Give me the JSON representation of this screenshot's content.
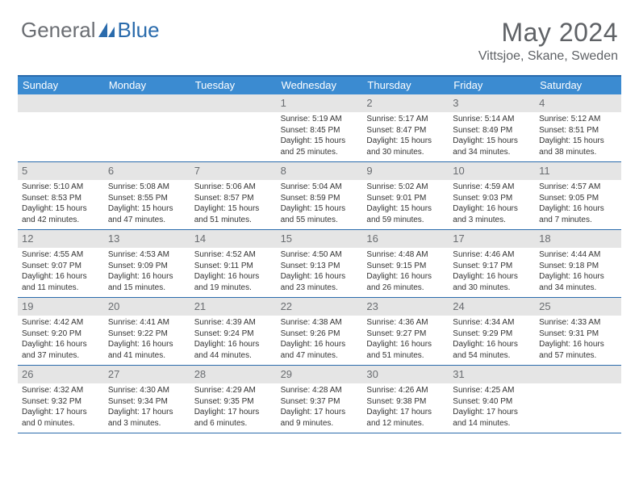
{
  "brand": {
    "part1": "General",
    "part2": "Blue"
  },
  "title": "May 2024",
  "location": "Vittsjoe, Skane, Sweden",
  "colors": {
    "header_bar": "#3b8bd1",
    "border": "#2a6bac",
    "daynum_bg": "#e5e5e5",
    "text": "#333333",
    "title_text": "#5f6266"
  },
  "day_names": [
    "Sunday",
    "Monday",
    "Tuesday",
    "Wednesday",
    "Thursday",
    "Friday",
    "Saturday"
  ],
  "weeks": [
    [
      {
        "n": "",
        "sr": "",
        "ss": "",
        "dl": ""
      },
      {
        "n": "",
        "sr": "",
        "ss": "",
        "dl": ""
      },
      {
        "n": "",
        "sr": "",
        "ss": "",
        "dl": ""
      },
      {
        "n": "1",
        "sr": "Sunrise: 5:19 AM",
        "ss": "Sunset: 8:45 PM",
        "dl": "Daylight: 15 hours and 25 minutes."
      },
      {
        "n": "2",
        "sr": "Sunrise: 5:17 AM",
        "ss": "Sunset: 8:47 PM",
        "dl": "Daylight: 15 hours and 30 minutes."
      },
      {
        "n": "3",
        "sr": "Sunrise: 5:14 AM",
        "ss": "Sunset: 8:49 PM",
        "dl": "Daylight: 15 hours and 34 minutes."
      },
      {
        "n": "4",
        "sr": "Sunrise: 5:12 AM",
        "ss": "Sunset: 8:51 PM",
        "dl": "Daylight: 15 hours and 38 minutes."
      }
    ],
    [
      {
        "n": "5",
        "sr": "Sunrise: 5:10 AM",
        "ss": "Sunset: 8:53 PM",
        "dl": "Daylight: 15 hours and 42 minutes."
      },
      {
        "n": "6",
        "sr": "Sunrise: 5:08 AM",
        "ss": "Sunset: 8:55 PM",
        "dl": "Daylight: 15 hours and 47 minutes."
      },
      {
        "n": "7",
        "sr": "Sunrise: 5:06 AM",
        "ss": "Sunset: 8:57 PM",
        "dl": "Daylight: 15 hours and 51 minutes."
      },
      {
        "n": "8",
        "sr": "Sunrise: 5:04 AM",
        "ss": "Sunset: 8:59 PM",
        "dl": "Daylight: 15 hours and 55 minutes."
      },
      {
        "n": "9",
        "sr": "Sunrise: 5:02 AM",
        "ss": "Sunset: 9:01 PM",
        "dl": "Daylight: 15 hours and 59 minutes."
      },
      {
        "n": "10",
        "sr": "Sunrise: 4:59 AM",
        "ss": "Sunset: 9:03 PM",
        "dl": "Daylight: 16 hours and 3 minutes."
      },
      {
        "n": "11",
        "sr": "Sunrise: 4:57 AM",
        "ss": "Sunset: 9:05 PM",
        "dl": "Daylight: 16 hours and 7 minutes."
      }
    ],
    [
      {
        "n": "12",
        "sr": "Sunrise: 4:55 AM",
        "ss": "Sunset: 9:07 PM",
        "dl": "Daylight: 16 hours and 11 minutes."
      },
      {
        "n": "13",
        "sr": "Sunrise: 4:53 AM",
        "ss": "Sunset: 9:09 PM",
        "dl": "Daylight: 16 hours and 15 minutes."
      },
      {
        "n": "14",
        "sr": "Sunrise: 4:52 AM",
        "ss": "Sunset: 9:11 PM",
        "dl": "Daylight: 16 hours and 19 minutes."
      },
      {
        "n": "15",
        "sr": "Sunrise: 4:50 AM",
        "ss": "Sunset: 9:13 PM",
        "dl": "Daylight: 16 hours and 23 minutes."
      },
      {
        "n": "16",
        "sr": "Sunrise: 4:48 AM",
        "ss": "Sunset: 9:15 PM",
        "dl": "Daylight: 16 hours and 26 minutes."
      },
      {
        "n": "17",
        "sr": "Sunrise: 4:46 AM",
        "ss": "Sunset: 9:17 PM",
        "dl": "Daylight: 16 hours and 30 minutes."
      },
      {
        "n": "18",
        "sr": "Sunrise: 4:44 AM",
        "ss": "Sunset: 9:18 PM",
        "dl": "Daylight: 16 hours and 34 minutes."
      }
    ],
    [
      {
        "n": "19",
        "sr": "Sunrise: 4:42 AM",
        "ss": "Sunset: 9:20 PM",
        "dl": "Daylight: 16 hours and 37 minutes."
      },
      {
        "n": "20",
        "sr": "Sunrise: 4:41 AM",
        "ss": "Sunset: 9:22 PM",
        "dl": "Daylight: 16 hours and 41 minutes."
      },
      {
        "n": "21",
        "sr": "Sunrise: 4:39 AM",
        "ss": "Sunset: 9:24 PM",
        "dl": "Daylight: 16 hours and 44 minutes."
      },
      {
        "n": "22",
        "sr": "Sunrise: 4:38 AM",
        "ss": "Sunset: 9:26 PM",
        "dl": "Daylight: 16 hours and 47 minutes."
      },
      {
        "n": "23",
        "sr": "Sunrise: 4:36 AM",
        "ss": "Sunset: 9:27 PM",
        "dl": "Daylight: 16 hours and 51 minutes."
      },
      {
        "n": "24",
        "sr": "Sunrise: 4:34 AM",
        "ss": "Sunset: 9:29 PM",
        "dl": "Daylight: 16 hours and 54 minutes."
      },
      {
        "n": "25",
        "sr": "Sunrise: 4:33 AM",
        "ss": "Sunset: 9:31 PM",
        "dl": "Daylight: 16 hours and 57 minutes."
      }
    ],
    [
      {
        "n": "26",
        "sr": "Sunrise: 4:32 AM",
        "ss": "Sunset: 9:32 PM",
        "dl": "Daylight: 17 hours and 0 minutes."
      },
      {
        "n": "27",
        "sr": "Sunrise: 4:30 AM",
        "ss": "Sunset: 9:34 PM",
        "dl": "Daylight: 17 hours and 3 minutes."
      },
      {
        "n": "28",
        "sr": "Sunrise: 4:29 AM",
        "ss": "Sunset: 9:35 PM",
        "dl": "Daylight: 17 hours and 6 minutes."
      },
      {
        "n": "29",
        "sr": "Sunrise: 4:28 AM",
        "ss": "Sunset: 9:37 PM",
        "dl": "Daylight: 17 hours and 9 minutes."
      },
      {
        "n": "30",
        "sr": "Sunrise: 4:26 AM",
        "ss": "Sunset: 9:38 PM",
        "dl": "Daylight: 17 hours and 12 minutes."
      },
      {
        "n": "31",
        "sr": "Sunrise: 4:25 AM",
        "ss": "Sunset: 9:40 PM",
        "dl": "Daylight: 17 hours and 14 minutes."
      },
      {
        "n": "",
        "sr": "",
        "ss": "",
        "dl": ""
      }
    ]
  ]
}
